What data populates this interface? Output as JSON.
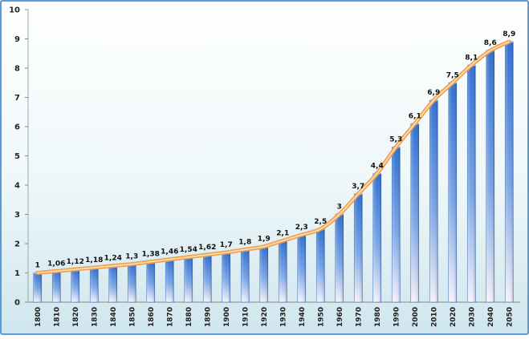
{
  "chart_data": {
    "type": "bar",
    "title": "",
    "xlabel": "",
    "ylabel": "",
    "ylim": [
      0,
      10
    ],
    "yticks": [
      0,
      1,
      2,
      3,
      4,
      5,
      6,
      7,
      8,
      9,
      10
    ],
    "grid": false,
    "legend": "none",
    "categories": [
      "1800",
      "1810",
      "1820",
      "1830",
      "1840",
      "1850",
      "1860",
      "1870",
      "1880",
      "1890",
      "1900",
      "1910",
      "1920",
      "1930",
      "1940",
      "1950",
      "1960",
      "1970",
      "1980",
      "1990",
      "2000",
      "2010",
      "2020",
      "2030",
      "2040",
      "2050"
    ],
    "values": [
      1,
      1.06,
      1.12,
      1.18,
      1.24,
      1.3,
      1.38,
      1.46,
      1.54,
      1.62,
      1.7,
      1.8,
      1.9,
      2.1,
      2.3,
      2.5,
      3,
      3.7,
      4.4,
      5.3,
      6.1,
      6.9,
      7.5,
      8.1,
      8.6,
      8.9
    ],
    "data_labels": [
      "1",
      "1,06",
      "1,12",
      "1,18",
      "1,24",
      "1,3",
      "1,38",
      "1,46",
      "1,54",
      "1,62",
      "1,7",
      "1,8",
      "1,9",
      "2,1",
      "2,3",
      "2,5",
      "3",
      "3,7",
      "4,4",
      "5,3",
      "6,1",
      "6,9",
      "7,5",
      "8,1",
      "8,6",
      "8,9"
    ],
    "overlay": "smoothed trend line through bar values",
    "colors": {
      "bar_top": "#2f6fd0",
      "bar_bottom": "#f4f1f8",
      "line_outer": "#f0a050",
      "line_inner": "#fde2b8",
      "background_top": "#ffffff",
      "background_bottom": "#cfe6ee",
      "frame_border": "#5a9ad8"
    }
  }
}
